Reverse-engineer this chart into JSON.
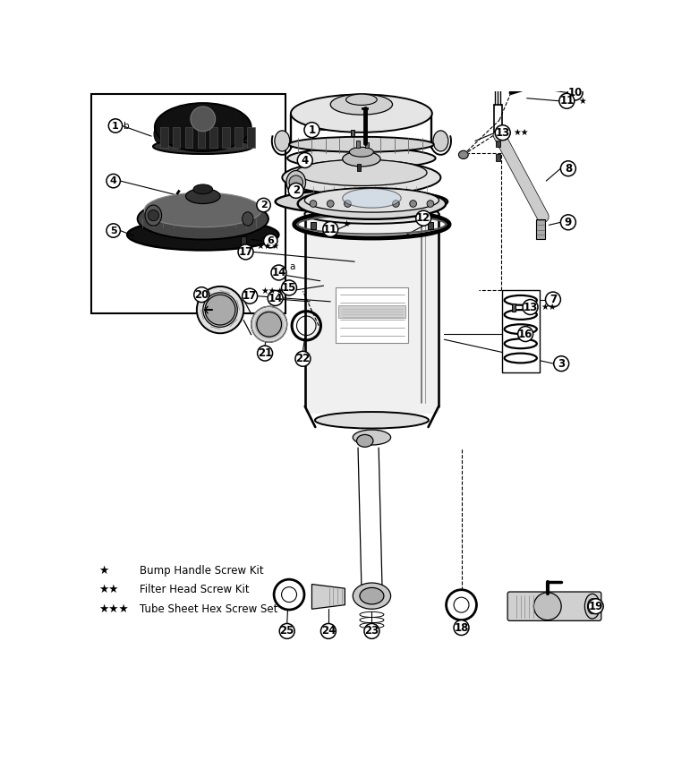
{
  "bg_color": "#ffffff",
  "line_color": "#000000",
  "legend_items": [
    {
      "stars": 1,
      "text": "Bump Handle Screw Kit"
    },
    {
      "stars": 2,
      "text": "Filter Head Screw Kit"
    },
    {
      "stars": 3,
      "text": "Tube Sheet Hex Screw Set"
    }
  ]
}
